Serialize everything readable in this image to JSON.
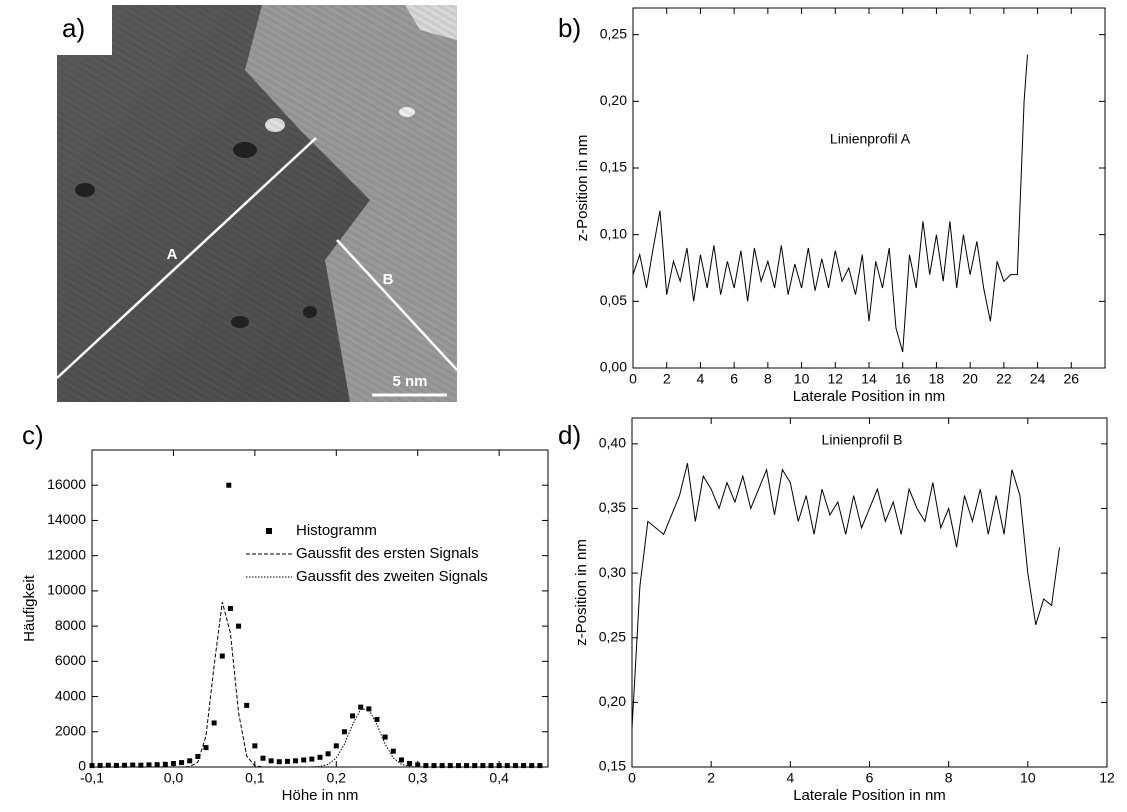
{
  "chart_data": [
    {
      "type": "image",
      "label": "a)",
      "annotations": [
        "A",
        "B",
        "5 nm"
      ]
    },
    {
      "type": "line",
      "label": "b)",
      "annotation": "Linienprofil A",
      "xlabel": "Laterale Position in nm",
      "ylabel": "z-Position in nm",
      "color": "#000000",
      "xlim": [
        0,
        28
      ],
      "xticks": [
        0,
        2,
        4,
        6,
        8,
        10,
        12,
        14,
        16,
        18,
        20,
        22,
        24,
        26
      ],
      "ylim": [
        0,
        0.27
      ],
      "yticks": [
        {
          "value": 0,
          "label": "0,00"
        },
        {
          "value": 0.05,
          "label": "0,05"
        },
        {
          "value": 0.1,
          "label": "0,10"
        },
        {
          "value": 0.15,
          "label": "0,15"
        },
        {
          "value": 0.2,
          "label": "0,20"
        },
        {
          "value": 0.25,
          "label": "0,25"
        }
      ],
      "x": [
        0,
        0.4,
        0.8,
        1.2,
        1.6,
        2,
        2.4,
        2.8,
        3.2,
        3.6,
        4,
        4.4,
        4.8,
        5.2,
        5.6,
        6,
        6.4,
        6.8,
        7.2,
        7.6,
        8,
        8.4,
        8.8,
        9.2,
        9.6,
        10,
        10.4,
        10.8,
        11.2,
        11.6,
        12,
        12.4,
        12.8,
        13.2,
        13.6,
        14,
        14.4,
        14.8,
        15.2,
        15.6,
        16,
        16.4,
        16.8,
        17.2,
        17.6,
        18,
        18.4,
        18.8,
        19.2,
        19.6,
        20,
        20.4,
        20.8,
        21.2,
        21.6,
        22,
        22.4,
        22.8,
        23.2,
        23.4
      ],
      "values": [
        0.07,
        0.085,
        0.06,
        0.09,
        0.118,
        0.055,
        0.08,
        0.065,
        0.09,
        0.05,
        0.085,
        0.06,
        0.092,
        0.055,
        0.08,
        0.06,
        0.088,
        0.05,
        0.09,
        0.065,
        0.08,
        0.06,
        0.092,
        0.055,
        0.078,
        0.06,
        0.09,
        0.058,
        0.082,
        0.06,
        0.088,
        0.065,
        0.075,
        0.055,
        0.085,
        0.035,
        0.08,
        0.06,
        0.09,
        0.03,
        0.012,
        0.085,
        0.06,
        0.11,
        0.07,
        0.1,
        0.065,
        0.11,
        0.06,
        0.1,
        0.07,
        0.095,
        0.06,
        0.035,
        0.08,
        0.065,
        0.07,
        0.07,
        0.2,
        0.235
      ]
    },
    {
      "type": "line",
      "label": "c)",
      "xlabel": "Höhe in nm",
      "ylabel": "Häufigkeit",
      "xlim": [
        -0.1,
        0.46
      ],
      "xticks": [
        {
          "value": -0.1,
          "label": "-0,1"
        },
        {
          "value": 0,
          "label": "0,0"
        },
        {
          "value": 0.1,
          "label": "0,1"
        },
        {
          "value": 0.2,
          "label": "0,2"
        },
        {
          "value": 0.3,
          "label": "0,3"
        },
        {
          "value": 0.4,
          "label": "0,4"
        }
      ],
      "ylim": [
        0,
        18000
      ],
      "yticks": [
        0,
        2000,
        4000,
        6000,
        8000,
        10000,
        12000,
        14000,
        16000
      ],
      "series": [
        {
          "name": "Histogramm",
          "style": "square",
          "color": "#000000",
          "x": [
            -0.1,
            -0.09,
            -0.08,
            -0.07,
            -0.06,
            -0.05,
            -0.04,
            -0.03,
            -0.02,
            -0.01,
            0,
            0.01,
            0.02,
            0.03,
            0.04,
            0.05,
            0.06,
            0.07,
            0.08,
            0.09,
            0.1,
            0.11,
            0.12,
            0.13,
            0.14,
            0.15,
            0.16,
            0.17,
            0.18,
            0.19,
            0.2,
            0.21,
            0.22,
            0.23,
            0.24,
            0.25,
            0.26,
            0.27,
            0.28,
            0.29,
            0.3,
            0.31,
            0.32,
            0.33,
            0.34,
            0.35,
            0.36,
            0.37,
            0.38,
            0.39,
            0.4,
            0.41,
            0.42,
            0.43,
            0.44,
            0.45,
            0.068
          ],
          "values": [
            80,
            90,
            100,
            90,
            100,
            110,
            100,
            120,
            130,
            150,
            200,
            250,
            350,
            600,
            1100,
            2500,
            6300,
            9000,
            8000,
            3500,
            1200,
            500,
            350,
            300,
            320,
            350,
            400,
            450,
            550,
            750,
            1200,
            2000,
            2900,
            3400,
            3300,
            2700,
            1700,
            900,
            400,
            200,
            120,
            80,
            80,
            80,
            80,
            80,
            80,
            80,
            80,
            80,
            80,
            80,
            80,
            80,
            80,
            80,
            16000
          ]
        },
        {
          "name": "Gaussfit des ersten Signals",
          "style": "dashed",
          "color": "#000000",
          "x": [
            0,
            0.01,
            0.02,
            0.03,
            0.04,
            0.05,
            0.06,
            0.07,
            0.08,
            0.09,
            0.1,
            0.11,
            0.12
          ],
          "values": [
            0,
            1,
            21,
            271,
            1770,
            5762,
            9369,
            7607,
            3084,
            624,
            63,
            3,
            0
          ]
        },
        {
          "name": "Gaussfit des zweiten Signals",
          "style": "dotted",
          "color": "#000000",
          "x": [
            0.17,
            0.18,
            0.19,
            0.2,
            0.21,
            0.22,
            0.23,
            0.24,
            0.25,
            0.26,
            0.27,
            0.28,
            0.29,
            0.3
          ],
          "values": [
            5,
            32,
            149,
            513,
            1296,
            2404,
            3271,
            3271,
            2404,
            1296,
            513,
            149,
            32,
            5
          ]
        }
      ]
    },
    {
      "type": "line",
      "label": "d)",
      "annotation": "Linienprofil B",
      "xlabel": "Laterale Position in nm",
      "ylabel": "z-Position in nm",
      "color": "#000000",
      "xlim": [
        0,
        12
      ],
      "xticks": [
        0,
        2,
        4,
        6,
        8,
        10,
        12
      ],
      "ylim": [
        0.15,
        0.42
      ],
      "yticks": [
        {
          "value": 0.15,
          "label": "0,15"
        },
        {
          "value": 0.2,
          "label": "0,20"
        },
        {
          "value": 0.25,
          "label": "0,25"
        },
        {
          "value": 0.3,
          "label": "0,30"
        },
        {
          "value": 0.35,
          "label": "0,35"
        },
        {
          "value": 0.4,
          "label": "0,40"
        }
      ],
      "x": [
        0,
        0.2,
        0.4,
        0.6,
        0.8,
        1,
        1.2,
        1.4,
        1.6,
        1.8,
        2,
        2.2,
        2.4,
        2.6,
        2.8,
        3,
        3.2,
        3.4,
        3.6,
        3.8,
        4,
        4.2,
        4.4,
        4.6,
        4.8,
        5,
        5.2,
        5.4,
        5.6,
        5.8,
        6,
        6.2,
        6.4,
        6.6,
        6.8,
        7,
        7.2,
        7.4,
        7.6,
        7.8,
        8,
        8.2,
        8.4,
        8.6,
        8.8,
        9,
        9.2,
        9.4,
        9.6,
        9.8,
        10,
        10.2,
        10.4,
        10.6,
        10.8
      ],
      "values": [
        0.18,
        0.29,
        0.34,
        0.335,
        0.33,
        0.345,
        0.36,
        0.385,
        0.34,
        0.375,
        0.365,
        0.35,
        0.37,
        0.355,
        0.375,
        0.35,
        0.365,
        0.38,
        0.345,
        0.38,
        0.37,
        0.34,
        0.36,
        0.33,
        0.365,
        0.345,
        0.355,
        0.33,
        0.36,
        0.335,
        0.35,
        0.365,
        0.34,
        0.355,
        0.33,
        0.365,
        0.35,
        0.34,
        0.37,
        0.335,
        0.35,
        0.32,
        0.36,
        0.34,
        0.365,
        0.33,
        0.36,
        0.33,
        0.38,
        0.36,
        0.3,
        0.26,
        0.28,
        0.275,
        0.32
      ]
    }
  ]
}
